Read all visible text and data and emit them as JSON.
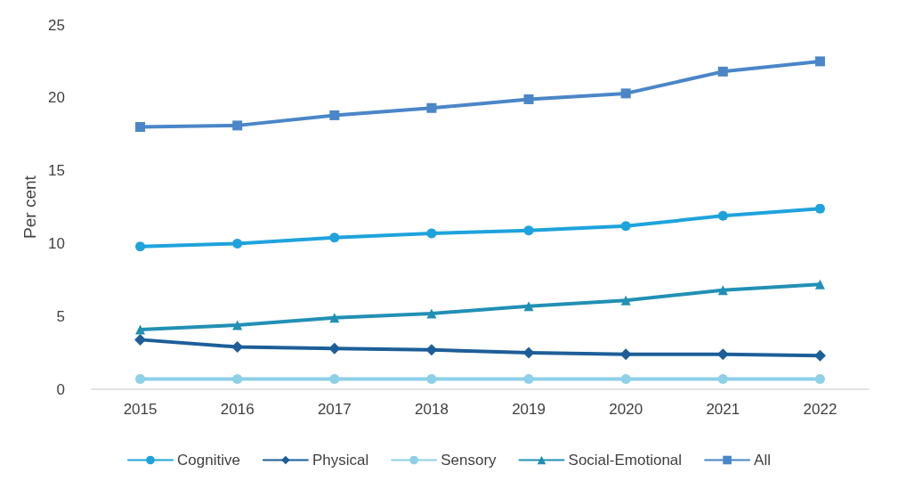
{
  "chart_data": {
    "type": "line",
    "ylabel": "Per cent",
    "categories": [
      "2015",
      "2016",
      "2017",
      "2018",
      "2019",
      "2020",
      "2021",
      "2022"
    ],
    "series": [
      {
        "name": "Cognitive",
        "color": "#1ea3dd",
        "marker": "circle",
        "values": [
          9.8,
          10.0,
          10.4,
          10.7,
          10.9,
          11.2,
          11.9,
          12.4
        ]
      },
      {
        "name": "Physical",
        "color": "#1d5e98",
        "marker": "diamond",
        "values": [
          3.4,
          2.9,
          2.8,
          2.7,
          2.5,
          2.4,
          2.4,
          2.3
        ]
      },
      {
        "name": "Sensory",
        "color": "#8dd0e8",
        "marker": "circle",
        "values": [
          0.7,
          0.7,
          0.7,
          0.7,
          0.7,
          0.7,
          0.7,
          0.7
        ]
      },
      {
        "name": "Social-Emotional",
        "color": "#2190b4",
        "marker": "triangle",
        "values": [
          4.1,
          4.4,
          4.9,
          5.2,
          5.7,
          6.1,
          6.8,
          7.2
        ]
      },
      {
        "name": "All",
        "color": "#4a86c8",
        "marker": "square",
        "values": [
          18.0,
          18.1,
          18.8,
          19.3,
          19.9,
          20.3,
          21.8,
          22.5
        ]
      }
    ],
    "ylim": [
      0,
      25
    ],
    "yticks": [
      0,
      5,
      10,
      15,
      20,
      25
    ],
    "grid": false,
    "legend": "bottom",
    "line_style": "solid"
  }
}
